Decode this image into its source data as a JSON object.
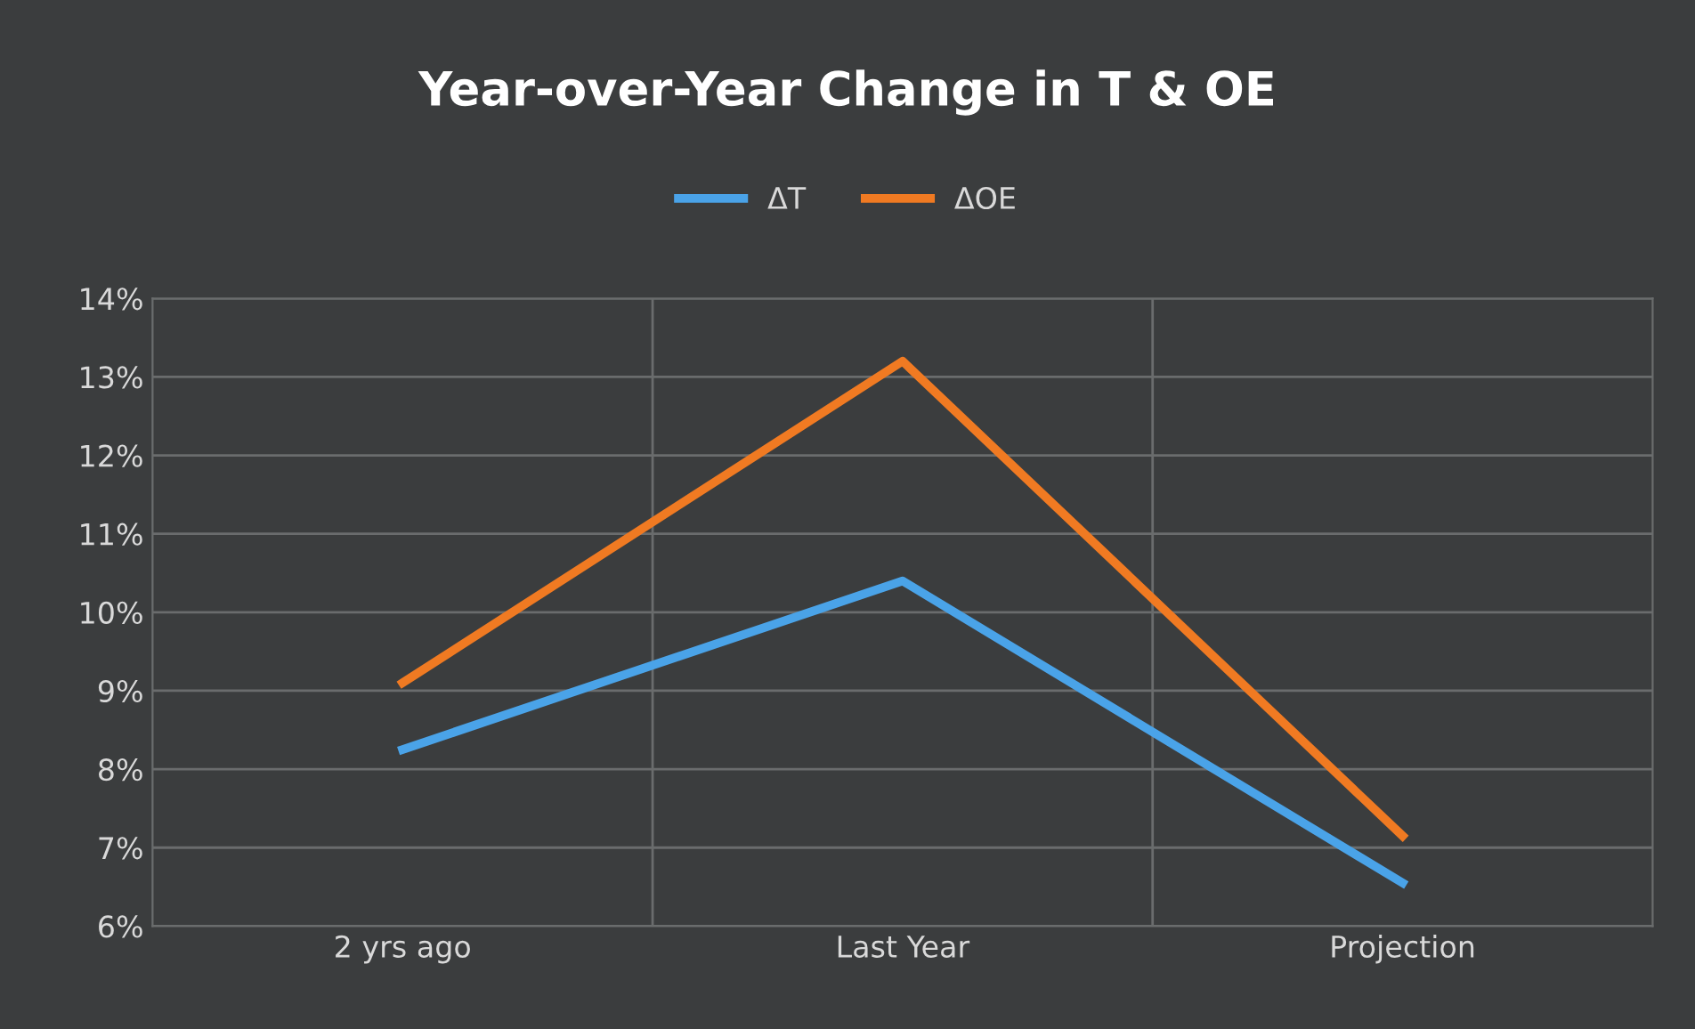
{
  "chart_data": {
    "type": "line",
    "title": "Year-over-Year Change in T & OE",
    "categories": [
      "2 yrs ago",
      "Last Year",
      "Projection"
    ],
    "series": [
      {
        "name": "ΔT",
        "color": "#4aa3e8",
        "values": [
          8.25,
          10.4,
          6.55
        ]
      },
      {
        "name": "ΔOE",
        "color": "#f07a22",
        "values": [
          9.1,
          13.2,
          7.15
        ]
      }
    ],
    "ylim": [
      6,
      14
    ],
    "yticks": [
      {
        "value": 6,
        "label": "6%"
      },
      {
        "value": 7,
        "label": "7%"
      },
      {
        "value": 8,
        "label": "8%"
      },
      {
        "value": 9,
        "label": "9%"
      },
      {
        "value": 10,
        "label": "10%"
      },
      {
        "value": 11,
        "label": "11%"
      },
      {
        "value": 12,
        "label": "12%"
      },
      {
        "value": 13,
        "label": "13%"
      },
      {
        "value": 14,
        "label": "14%"
      }
    ],
    "grid": true,
    "legend": "top",
    "marker": "none",
    "line_style": "solid"
  }
}
